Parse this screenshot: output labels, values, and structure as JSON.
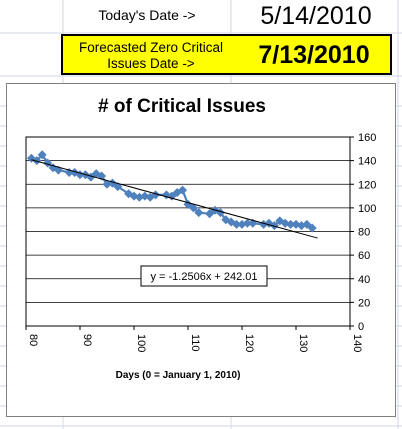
{
  "sheet": {
    "today_label": "Today's Date ->",
    "today_value": "5/14/2010",
    "forecast_label_line1": "Forecasted Zero Critical",
    "forecast_label_line2": "Issues Date ->",
    "forecast_value": "7/13/2010",
    "forecast_fill": "#ffff00"
  },
  "chart_data": {
    "type": "scatter",
    "title": "# of Critical Issues",
    "xlabel": "Days (0 = January  1, 2010)",
    "ylabel": "",
    "xlim": [
      80,
      140
    ],
    "ylim": [
      0,
      160
    ],
    "x_ticks": [
      80,
      90,
      100,
      110,
      120,
      130,
      140
    ],
    "y_ticks": [
      0,
      20,
      40,
      60,
      80,
      100,
      120,
      140,
      160
    ],
    "y_axis_side": "right",
    "grid": "horizontal",
    "marker_color": "#4f81bd",
    "trendline_color": "#000000",
    "trendline": {
      "slope": -1.2506,
      "intercept": 242.01,
      "x_range": [
        81,
        134
      ]
    },
    "trendline_label": "y = -1.2506x + 242.01",
    "series": [
      {
        "x": [
          81,
          82,
          83,
          84,
          85,
          86,
          88,
          89,
          90,
          91,
          92,
          93,
          94,
          95,
          96,
          97,
          99,
          100,
          101,
          102,
          103,
          104,
          106,
          107,
          108,
          109,
          110,
          111,
          112,
          114,
          115,
          116,
          117,
          118,
          119,
          120,
          121,
          122,
          124,
          125,
          126,
          127,
          128,
          129,
          130,
          131,
          132,
          133
        ],
        "y": [
          142,
          140,
          145,
          138,
          134,
          132,
          130,
          130,
          128,
          128,
          126,
          129,
          127,
          120,
          121,
          118,
          112,
          110,
          109,
          110,
          109,
          111,
          111,
          110,
          113,
          115,
          103,
          100,
          96,
          95,
          98,
          96,
          90,
          88,
          86,
          86,
          87,
          87,
          86,
          87,
          85,
          89,
          87,
          86,
          86,
          85,
          86,
          83
        ]
      }
    ]
  }
}
